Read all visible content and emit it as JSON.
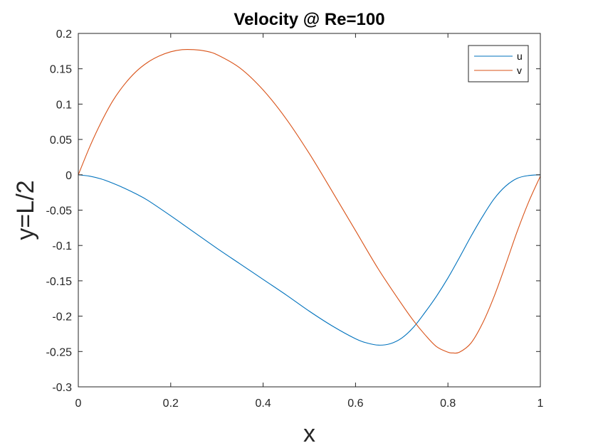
{
  "chart_data": {
    "type": "line",
    "title": "Velocity @ Re=100",
    "xlabel": "x",
    "ylabel": "y=L/2",
    "xlim": [
      0,
      1
    ],
    "ylim": [
      -0.3,
      0.2
    ],
    "xticks": [
      0,
      0.2,
      0.4,
      0.6,
      0.8,
      1
    ],
    "xtick_labels": [
      "0",
      "0.2",
      "0.4",
      "0.6",
      "0.8",
      "1"
    ],
    "yticks": [
      0.2,
      0.15,
      0.1,
      0.05,
      0,
      -0.05,
      -0.1,
      -0.15,
      -0.2,
      -0.25,
      -0.3
    ],
    "ytick_labels": [
      "0.2",
      "0.15",
      "0.1",
      "0.05",
      "0",
      "-0.05",
      "-0.1",
      "-0.15",
      "-0.2",
      "-0.25",
      "-0.3"
    ],
    "grid": false,
    "box": true,
    "legend_position": "top-right",
    "series": [
      {
        "name": "u",
        "color": "#0072BD",
        "x": [
          0,
          0.025,
          0.05,
          0.075,
          0.1,
          0.125,
          0.15,
          0.2,
          0.25,
          0.3,
          0.35,
          0.4,
          0.45,
          0.5,
          0.55,
          0.6,
          0.625,
          0.65,
          0.675,
          0.7,
          0.725,
          0.75,
          0.775,
          0.8,
          0.825,
          0.85,
          0.875,
          0.9,
          0.925,
          0.95,
          0.975,
          1.0
        ],
        "y": [
          0,
          -0.002,
          -0.006,
          -0.012,
          -0.019,
          -0.027,
          -0.036,
          -0.058,
          -0.081,
          -0.104,
          -0.126,
          -0.148,
          -0.17,
          -0.193,
          -0.214,
          -0.232,
          -0.238,
          -0.241,
          -0.239,
          -0.231,
          -0.216,
          -0.195,
          -0.172,
          -0.146,
          -0.117,
          -0.087,
          -0.059,
          -0.034,
          -0.016,
          -0.005,
          -0.001,
          0
        ]
      },
      {
        "name": "v",
        "color": "#D95319",
        "x": [
          0,
          0.025,
          0.05,
          0.075,
          0.1,
          0.125,
          0.15,
          0.175,
          0.2,
          0.225,
          0.25,
          0.275,
          0.3,
          0.35,
          0.4,
          0.45,
          0.5,
          0.55,
          0.6,
          0.65,
          0.7,
          0.725,
          0.75,
          0.775,
          0.8,
          0.81,
          0.825,
          0.85,
          0.875,
          0.9,
          0.925,
          0.95,
          0.975,
          1.0
        ],
        "y": [
          0,
          0.04,
          0.075,
          0.105,
          0.128,
          0.146,
          0.159,
          0.168,
          0.174,
          0.177,
          0.177,
          0.175,
          0.17,
          0.151,
          0.12,
          0.079,
          0.03,
          -0.024,
          -0.079,
          -0.134,
          -0.183,
          -0.206,
          -0.226,
          -0.243,
          -0.251,
          -0.252,
          -0.251,
          -0.238,
          -0.21,
          -0.172,
          -0.127,
          -0.08,
          -0.038,
          -0.002
        ]
      }
    ]
  }
}
